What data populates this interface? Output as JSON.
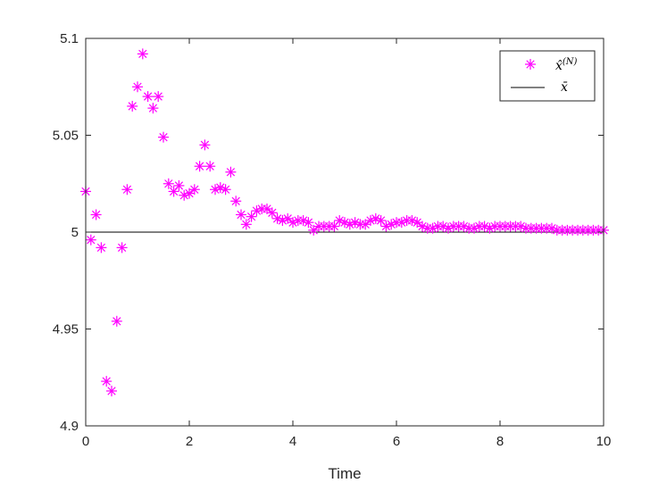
{
  "chart_data": {
    "type": "scatter",
    "xlabel": "Time",
    "ylabel": "",
    "title": "",
    "xlim": [
      0,
      10
    ],
    "ylim": [
      4.9,
      5.1
    ],
    "xticks": [
      "0",
      "2",
      "4",
      "6",
      "8",
      "10"
    ],
    "yticks": [
      "4.9",
      "4.95",
      "5",
      "5.05",
      "5.1"
    ],
    "grid": false,
    "legend_position": "top-right",
    "colors": {
      "estimate": "#ff00ff",
      "reference": "#000000"
    },
    "legend": {
      "estimate": {
        "base": "x̂",
        "sup": "(N)"
      },
      "reference": {
        "base": "x̄"
      }
    },
    "reference_value": 5.0,
    "series": [
      {
        "marker": "asterisk",
        "x": [
          0.0,
          0.1,
          0.2,
          0.3,
          0.4,
          0.5,
          0.6,
          0.7,
          0.8,
          0.9,
          1.0,
          1.1,
          1.2,
          1.3,
          1.4,
          1.5,
          1.6,
          1.7,
          1.8,
          1.9,
          2.0,
          2.1,
          2.2,
          2.3,
          2.4,
          2.5,
          2.6,
          2.7,
          2.8,
          2.9,
          3.0,
          3.1,
          3.2,
          3.3,
          3.4,
          3.5,
          3.6,
          3.7,
          3.8,
          3.9,
          4.0,
          4.1,
          4.2,
          4.3,
          4.4,
          4.5,
          4.6,
          4.7,
          4.8,
          4.9,
          5.0,
          5.1,
          5.2,
          5.3,
          5.4,
          5.5,
          5.6,
          5.7,
          5.8,
          5.9,
          6.0,
          6.1,
          6.2,
          6.3,
          6.4,
          6.5,
          6.6,
          6.7,
          6.8,
          6.9,
          7.0,
          7.1,
          7.2,
          7.3,
          7.4,
          7.5,
          7.6,
          7.7,
          7.8,
          7.9,
          8.0,
          8.1,
          8.2,
          8.3,
          8.4,
          8.5,
          8.6,
          8.7,
          8.8,
          8.9,
          9.0,
          9.1,
          9.2,
          9.3,
          9.4,
          9.5,
          9.6,
          9.7,
          9.8,
          9.9,
          10.0
        ],
        "y": [
          5.021,
          4.996,
          5.009,
          4.992,
          4.923,
          4.918,
          4.954,
          4.992,
          5.022,
          5.065,
          5.075,
          5.092,
          5.07,
          5.064,
          5.07,
          5.049,
          5.025,
          5.021,
          5.024,
          5.019,
          5.02,
          5.022,
          5.034,
          5.045,
          5.034,
          5.022,
          5.023,
          5.022,
          5.031,
          5.016,
          5.009,
          5.004,
          5.008,
          5.011,
          5.012,
          5.012,
          5.01,
          5.007,
          5.006,
          5.007,
          5.005,
          5.006,
          5.006,
          5.005,
          5.001,
          5.003,
          5.003,
          5.003,
          5.003,
          5.006,
          5.005,
          5.004,
          5.005,
          5.004,
          5.004,
          5.006,
          5.007,
          5.006,
          5.003,
          5.004,
          5.005,
          5.005,
          5.006,
          5.006,
          5.005,
          5.003,
          5.002,
          5.002,
          5.003,
          5.003,
          5.002,
          5.003,
          5.003,
          5.003,
          5.002,
          5.002,
          5.003,
          5.003,
          5.002,
          5.003,
          5.003,
          5.003,
          5.003,
          5.003,
          5.003,
          5.002,
          5.002,
          5.002,
          5.002,
          5.002,
          5.002,
          5.001,
          5.001,
          5.001,
          5.001,
          5.001,
          5.001,
          5.001,
          5.001,
          5.001,
          5.001
        ]
      }
    ]
  }
}
